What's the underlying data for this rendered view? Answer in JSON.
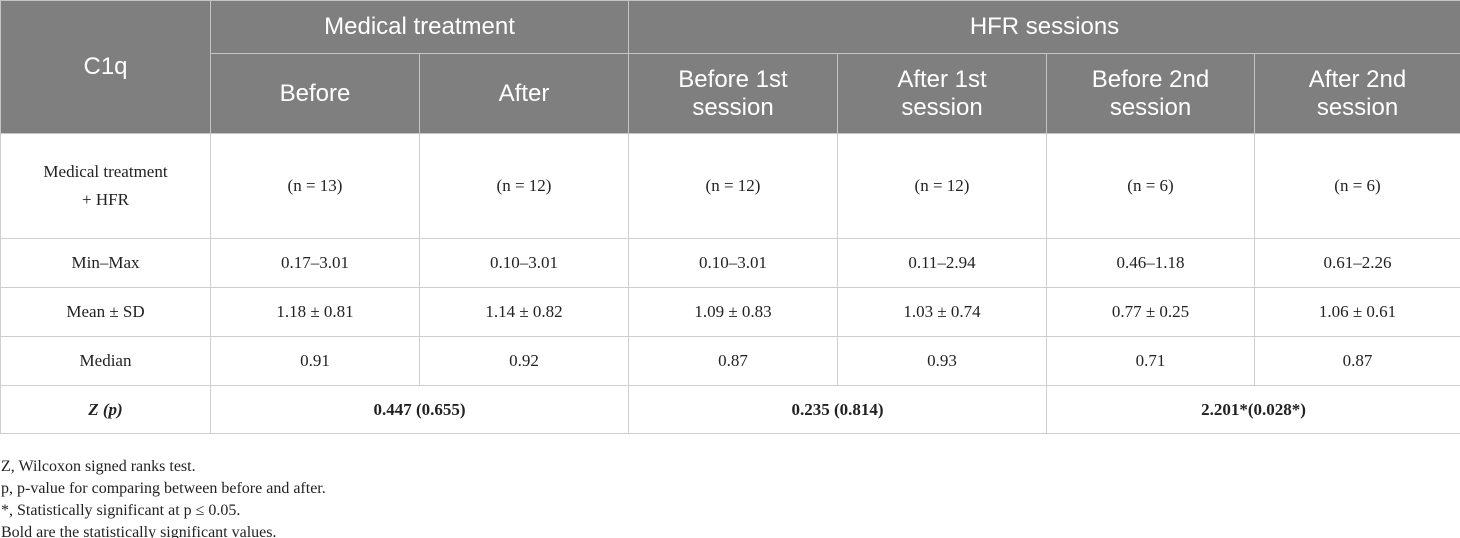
{
  "table": {
    "corner": "C1q",
    "groups": [
      "Medical treatment",
      "HFR sessions"
    ],
    "columns": [
      "Before",
      "After",
      "Before 1st session",
      "After 1st session",
      "Before 2nd session",
      "After 2nd session"
    ],
    "rows": [
      [
        "Medical treatment + HFR",
        "(n = 13)",
        "(n = 12)",
        "(n = 12)",
        "(n = 12)",
        "(n = 6)",
        "(n = 6)"
      ],
      [
        "Min–Max",
        "0.17–3.01",
        "0.10–3.01",
        "0.10–3.01",
        "0.11–2.94",
        "0.46–1.18",
        "0.61–2.26"
      ],
      [
        "Mean ± SD",
        "1.18 ± 0.81",
        "1.14 ± 0.82",
        "1.09 ± 0.83",
        "1.03 ± 0.74",
        "0.77 ± 0.25",
        "1.06 ± 0.61"
      ],
      [
        "Median",
        "0.91",
        "0.92",
        "0.87",
        "0.93",
        "0.71",
        "0.87"
      ]
    ],
    "z_row": {
      "label": "Z (p)",
      "values": [
        "0.447 (0.655)",
        "0.235 (0.814)",
        "2.201*(0.028*)"
      ]
    }
  },
  "footnotes": [
    "Z, Wilcoxon signed ranks test.",
    "p, p-value for comparing between before and after.",
    "*, Statistically significant at p ≤ 0.05.",
    "Bold are the statistically significant values."
  ]
}
